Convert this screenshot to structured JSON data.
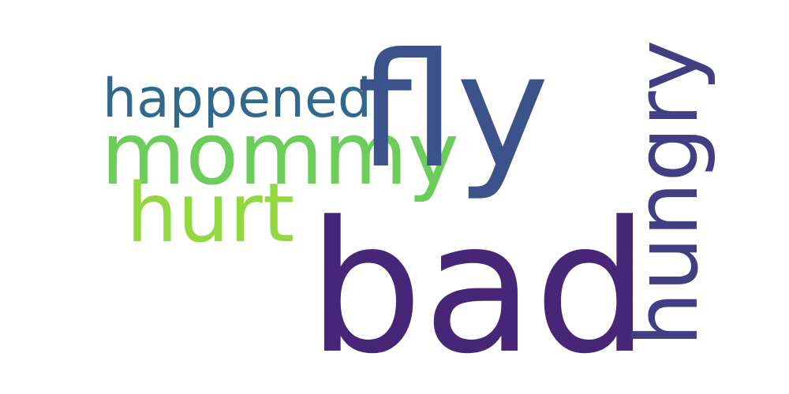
{
  "words": {
    "fly": {
      "text": "fly",
      "color": "#3b528b"
    },
    "bad": {
      "text": "bad",
      "color": "#472677"
    },
    "happened": {
      "text": "happened",
      "color": "#31688e"
    },
    "mommy": {
      "text": "mommy",
      "color": "#6ccd5a"
    },
    "hurt": {
      "text": "hurt",
      "color": "#93d741"
    },
    "hungry": {
      "text": "hungry",
      "color": "#433d84"
    }
  }
}
